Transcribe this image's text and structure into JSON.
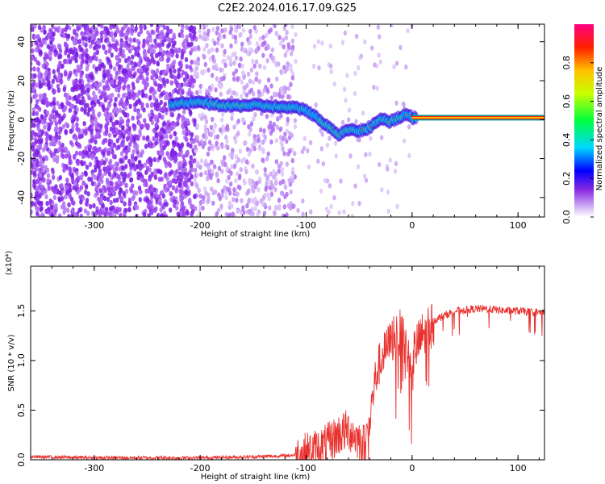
{
  "figure_title": "C2E2.2024.016.17.09.G25",
  "colors": {
    "spectrogram_dots": "#8a2be2",
    "snr_line": "#e8322e",
    "axis": "#000000"
  },
  "chart_data": [
    {
      "type": "heatmap",
      "title": "",
      "xlabel": "Height of straight line (km)",
      "ylabel": "Frequency (Hz)",
      "xlim": [
        -360,
        125
      ],
      "ylim": [
        -50,
        49
      ],
      "xticks": [
        -300,
        -200,
        -100,
        0,
        100
      ],
      "xtick_labels": [
        "-300",
        "-200",
        "-100",
        "0",
        "100"
      ],
      "yticks": [
        -40,
        -20,
        0,
        20,
        40
      ],
      "ytick_labels": [
        "-40",
        "-20",
        "0",
        "20",
        "40"
      ],
      "colorbar": {
        "label": "Normalized spectral amplitude",
        "range": [
          0,
          1
        ],
        "ticks": [
          0.0,
          0.2,
          0.4,
          0.6,
          0.8
        ],
        "tick_labels": [
          "0.0",
          "0.2",
          "0.4",
          "0.6",
          "0.8"
        ]
      },
      "ridge": {
        "height_km": [
          -225,
          -200,
          -175,
          -150,
          -125,
          -110,
          -100,
          -90,
          -80,
          -70,
          -60,
          -50,
          -40,
          -30,
          -20,
          -10,
          -5,
          0,
          125
        ],
        "frequency_hz": [
          8,
          9,
          7,
          7.5,
          6.5,
          6,
          5,
          1,
          -3,
          -8,
          -5,
          -6,
          -4,
          0,
          -1,
          2,
          3,
          1,
          1
        ]
      }
    },
    {
      "type": "line",
      "title": "",
      "xlabel": "Height of straight line (km)",
      "ylabel": "SNR (10 * v/v)",
      "y_multiplier": "(x10⁴)",
      "xlim": [
        -360,
        125
      ],
      "ylim": [
        0,
        1.95
      ],
      "xticks": [
        -300,
        -200,
        -100,
        0,
        100
      ],
      "xtick_labels": [
        "-300",
        "-200",
        "-100",
        "0",
        "100"
      ],
      "yticks": [
        0,
        0.5,
        1.0,
        1.5
      ],
      "ytick_labels": [
        "0.0",
        "0.5",
        "1.0",
        "1.5"
      ],
      "x": [
        -360,
        -300,
        -250,
        -200,
        -150,
        -120,
        -100,
        -90,
        -80,
        -70,
        -60,
        -50,
        -45,
        -40,
        -35,
        -30,
        -25,
        -20,
        -15,
        -10,
        -5,
        0,
        10,
        20,
        30,
        40,
        50,
        60,
        70,
        80,
        90,
        100,
        110,
        125
      ],
      "y": [
        0.03,
        0.02,
        0.02,
        0.02,
        0.03,
        0.04,
        0.06,
        0.1,
        0.15,
        0.25,
        0.3,
        0.2,
        0.15,
        0.4,
        0.8,
        1.0,
        1.1,
        1.2,
        1.3,
        1.25,
        1.1,
        1.05,
        1.25,
        1.4,
        1.45,
        1.5,
        1.51,
        1.52,
        1.52,
        1.51,
        1.5,
        1.5,
        1.49,
        1.48
      ]
    }
  ]
}
